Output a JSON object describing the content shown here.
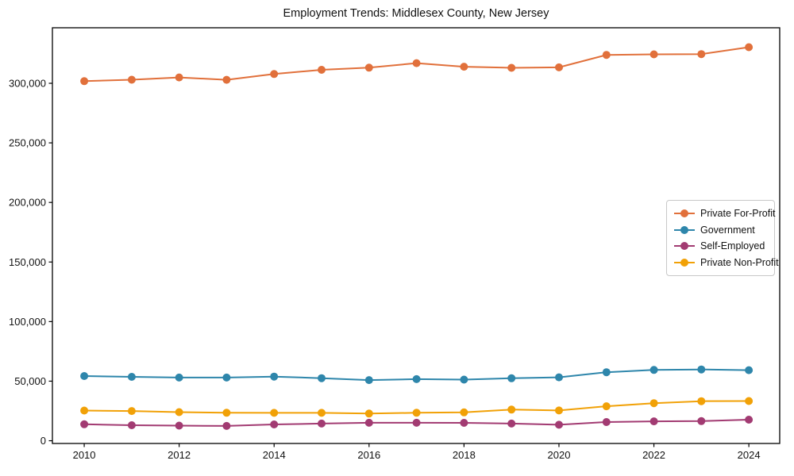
{
  "chart_data": {
    "type": "line",
    "title": "Employment Trends: Middlesex County, New Jersey",
    "xlabel": "",
    "ylabel": "",
    "grid": false,
    "legend_position": "center-right",
    "marker": "circle",
    "x": [
      2010,
      2011,
      2012,
      2013,
      2014,
      2015,
      2016,
      2017,
      2018,
      2019,
      2020,
      2021,
      2022,
      2023,
      2024
    ],
    "series": [
      {
        "name": "Private For-Profit",
        "color": "#E1703B",
        "values": [
          301800,
          303000,
          304900,
          302900,
          307800,
          311300,
          313100,
          316900,
          313900,
          313000,
          313400,
          323800,
          324300,
          324500,
          330300
        ]
      },
      {
        "name": "Government",
        "color": "#2E86AB",
        "values": [
          54300,
          53600,
          53000,
          53000,
          53800,
          52500,
          50900,
          51700,
          51300,
          52400,
          53200,
          57500,
          59400,
          59800,
          59200
        ]
      },
      {
        "name": "Self-Employed",
        "color": "#A23B72",
        "values": [
          13800,
          13000,
          12700,
          12400,
          13700,
          14400,
          15100,
          15100,
          15000,
          14400,
          13400,
          15700,
          16300,
          16500,
          17700
        ]
      },
      {
        "name": "Private Non-Profit",
        "color": "#F1A107",
        "values": [
          25300,
          24900,
          24000,
          23500,
          23400,
          23400,
          22800,
          23500,
          23800,
          26100,
          25400,
          28900,
          31500,
          33200,
          33300
        ]
      }
    ],
    "xlim": [
      2009.33,
      2024.65
    ],
    "ylim": [
      -2300,
      346600
    ],
    "xticks": {
      "values": [
        2010,
        2012,
        2014,
        2016,
        2018,
        2020,
        2022,
        2024
      ],
      "labels": [
        "2010",
        "2012",
        "2014",
        "2016",
        "2018",
        "2020",
        "2022",
        "2024"
      ]
    },
    "yticks": {
      "values": [
        0,
        50000,
        100000,
        150000,
        200000,
        250000,
        300000
      ],
      "labels": [
        "0",
        "50,000",
        "100,000",
        "150,000",
        "200,000",
        "250,000",
        "300,000"
      ]
    },
    "axis_color": "#000000",
    "tick_label_color": "#111111"
  }
}
